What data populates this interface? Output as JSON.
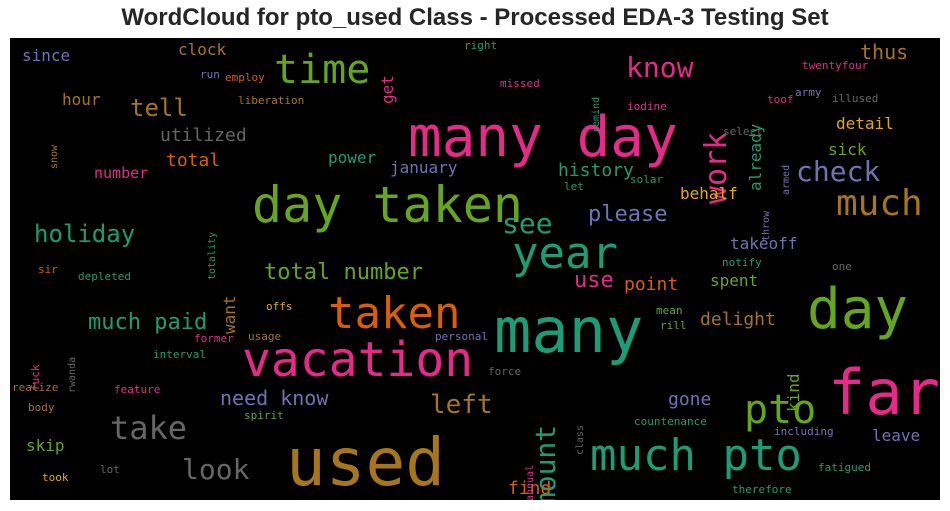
{
  "title": "WordCloud for pto_used Class - Processed EDA-3 Testing Set",
  "palette": {
    "pink": "#e7298a",
    "green": "#66a61e",
    "teal": "#1b9e77",
    "orange": "#d95f02",
    "purple": "#7570b3",
    "gold": "#a6761d",
    "yellow": "#e6ab02",
    "grey": "#666666"
  },
  "words": [
    {
      "text": "many day",
      "color": "#e7298a"
    },
    {
      "text": "day taken",
      "color": "#66a61e"
    },
    {
      "text": "used",
      "color": "#a6761d"
    },
    {
      "text": "vacation",
      "color": "#e7298a"
    },
    {
      "text": "many",
      "color": "#1b9e77"
    },
    {
      "text": "far",
      "color": "#e7298a"
    },
    {
      "text": "day",
      "color": "#66a61e"
    },
    {
      "text": "year",
      "color": "#1b9e77"
    },
    {
      "text": "taken",
      "color": "#d95f02"
    },
    {
      "text": "much pto",
      "color": "#1b9e77"
    },
    {
      "text": "time",
      "color": "#66a61e"
    },
    {
      "text": "work",
      "color": "#e7298a"
    },
    {
      "text": "pto",
      "color": "#66a61e"
    },
    {
      "text": "much",
      "color": "#a6761d"
    },
    {
      "text": "check",
      "color": "#7570b3"
    },
    {
      "text": "amount",
      "color": "#1b9e77"
    },
    {
      "text": "take",
      "color": "#666666"
    },
    {
      "text": "see",
      "color": "#1b9e77"
    },
    {
      "text": "know",
      "color": "#e7298a"
    },
    {
      "text": "look",
      "color": "#666666"
    },
    {
      "text": "holiday",
      "color": "#1b9e77"
    },
    {
      "text": "much paid",
      "color": "#1b9e77"
    },
    {
      "text": "tell",
      "color": "#a6761d"
    },
    {
      "text": "total number",
      "color": "#66a61e"
    },
    {
      "text": "left",
      "color": "#a6761d"
    },
    {
      "text": "need know",
      "color": "#7570b3"
    },
    {
      "text": "please",
      "color": "#7570b3"
    },
    {
      "text": "use",
      "color": "#e7298a"
    },
    {
      "text": "utilized",
      "color": "#666666"
    },
    {
      "text": "total",
      "color": "#d95f02"
    },
    {
      "text": "thus",
      "color": "#a6761d"
    },
    {
      "text": "history",
      "color": "#1b9e77"
    },
    {
      "text": "point",
      "color": "#d95f02"
    },
    {
      "text": "delight",
      "color": "#a6761d"
    },
    {
      "text": "gone",
      "color": "#7570b3"
    },
    {
      "text": "find",
      "color": "#d95f02"
    },
    {
      "text": "already",
      "color": "#1b9e77"
    },
    {
      "text": "sick",
      "color": "#66a61e"
    },
    {
      "text": "detail",
      "color": "#e6ab02"
    },
    {
      "text": "takeoff",
      "color": "#7570b3"
    },
    {
      "text": "spent",
      "color": "#66a61e"
    },
    {
      "text": "kind",
      "color": "#66a61e"
    },
    {
      "text": "leave",
      "color": "#7570b3"
    },
    {
      "text": "january",
      "color": "#7570b3"
    },
    {
      "text": "power",
      "color": "#1b9e77"
    },
    {
      "text": "behalf",
      "color": "#e6ab02"
    },
    {
      "text": "want",
      "color": "#a6761d"
    },
    {
      "text": "get",
      "color": "#e7298a"
    },
    {
      "text": "hour",
      "color": "#a6761d"
    },
    {
      "text": "clock",
      "color": "#a6761d"
    },
    {
      "text": "since",
      "color": "#7570b3"
    },
    {
      "text": "number",
      "color": "#e7298a"
    },
    {
      "text": "skip",
      "color": "#66a61e"
    },
    {
      "text": "right",
      "color": "#1b9e77"
    },
    {
      "text": "run",
      "color": "#7570b3"
    },
    {
      "text": "employ",
      "color": "#d95f02"
    },
    {
      "text": "liberation",
      "color": "#a6761d"
    },
    {
      "text": "missed",
      "color": "#e7298a"
    },
    {
      "text": "remind",
      "color": "#1b9e77"
    },
    {
      "text": "iodine",
      "color": "#e7298a"
    },
    {
      "text": "toof",
      "color": "#e7298a"
    },
    {
      "text": "army",
      "color": "#7570b3"
    },
    {
      "text": "illused",
      "color": "#666666"
    },
    {
      "text": "twentyfour",
      "color": "#e7298a"
    },
    {
      "text": "select",
      "color": "#666666"
    },
    {
      "text": "armed",
      "color": "#7570b3"
    },
    {
      "text": "solar",
      "color": "#1b9e77"
    },
    {
      "text": "let",
      "color": "#1b9e77"
    },
    {
      "text": "throw",
      "color": "#7570b3"
    },
    {
      "text": "notify",
      "color": "#1b9e77"
    },
    {
      "text": "one",
      "color": "#666666"
    },
    {
      "text": "mean",
      "color": "#66a61e"
    },
    {
      "text": "rill",
      "color": "#66a61e"
    },
    {
      "text": "offs",
      "color": "#e6ab02"
    },
    {
      "text": "former",
      "color": "#e7298a"
    },
    {
      "text": "usage",
      "color": "#a6761d"
    },
    {
      "text": "personal",
      "color": "#7570b3"
    },
    {
      "text": "interval",
      "color": "#1b9e77"
    },
    {
      "text": "sir",
      "color": "#d95f02"
    },
    {
      "text": "depleted",
      "color": "#1b9e77"
    },
    {
      "text": "totality",
      "color": "#1b9e77"
    },
    {
      "text": "snow",
      "color": "#a6761d"
    },
    {
      "text": "fuck",
      "color": "#e7298a"
    },
    {
      "text": "rwanda",
      "color": "#666666"
    },
    {
      "text": "realize",
      "color": "#a6761d"
    },
    {
      "text": "feature",
      "color": "#e7298a"
    },
    {
      "text": "body",
      "color": "#a6761d"
    },
    {
      "text": "spirit",
      "color": "#66a61e"
    },
    {
      "text": "force",
      "color": "#666666"
    },
    {
      "text": "class",
      "color": "#666666"
    },
    {
      "text": "countenance",
      "color": "#1b9e77"
    },
    {
      "text": "including",
      "color": "#7570b3"
    },
    {
      "text": "fatigued",
      "color": "#1b9e77"
    },
    {
      "text": "therefore",
      "color": "#1b9e77"
    },
    {
      "text": "took",
      "color": "#e6ab02"
    },
    {
      "text": "lot",
      "color": "#666666"
    },
    {
      "text": "annual",
      "color": "#e7298a"
    }
  ]
}
